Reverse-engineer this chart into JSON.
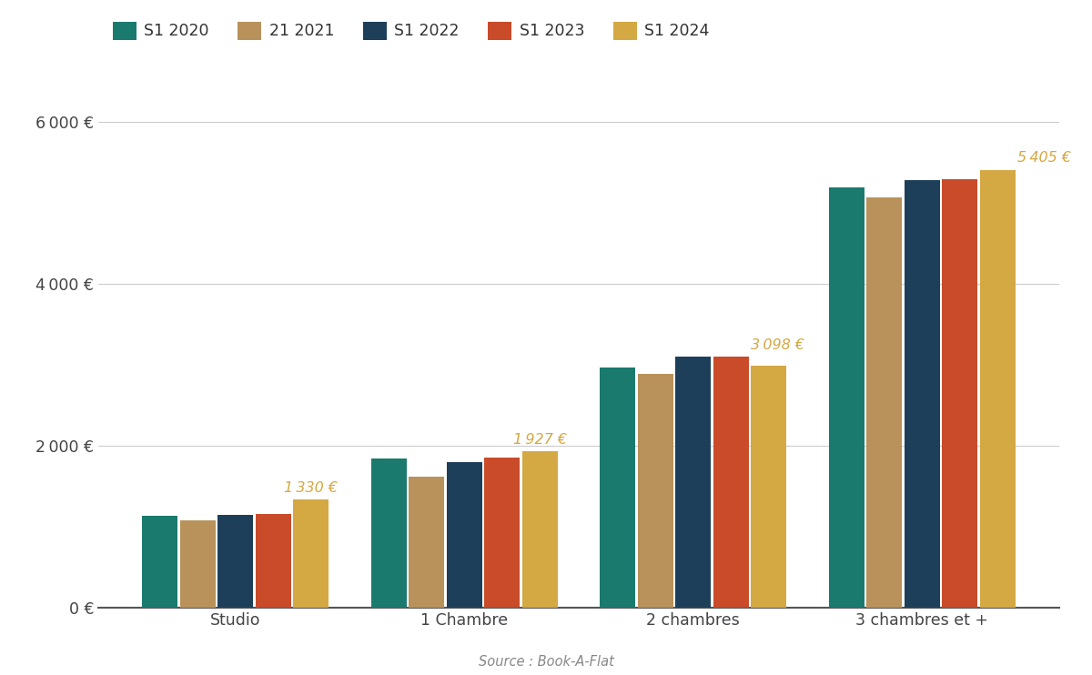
{
  "categories": [
    "Studio",
    "1 Chambre",
    "2 chambres",
    "3 chambres et +"
  ],
  "series_labels": [
    "S1 2020",
    "21 2021",
    "S1 2022",
    "S1 2023",
    "S1 2024"
  ],
  "series_colors": [
    "#1a7a6e",
    "#b8925a",
    "#1e3f5a",
    "#c94b2a",
    "#d4a843"
  ],
  "values": [
    [
      1130,
      1080,
      1140,
      1160,
      1330
    ],
    [
      1840,
      1620,
      1790,
      1850,
      1927
    ],
    [
      2960,
      2880,
      3100,
      3098,
      2980
    ],
    [
      5190,
      5060,
      5280,
      5290,
      5405
    ]
  ],
  "annotations": [
    {
      "cat_idx": 0,
      "value": 1330,
      "text": "1 330 €",
      "series_idx": 4,
      "ha": "center"
    },
    {
      "cat_idx": 1,
      "value": 1927,
      "text": "1 927 €",
      "series_idx": 4,
      "ha": "center"
    },
    {
      "cat_idx": 2,
      "value": 3098,
      "text": "3 098 €",
      "series_idx": 3,
      "ha": "left"
    },
    {
      "cat_idx": 3,
      "value": 5405,
      "text": "5 405 €",
      "series_idx": 4,
      "ha": "left"
    }
  ],
  "annotation_color": "#d4a843",
  "yticks": [
    0,
    2000,
    4000,
    6000
  ],
  "ytick_labels": [
    "0 €",
    "2 000 €",
    "4 000 €",
    "6 000 €"
  ],
  "ylim": [
    0,
    6500
  ],
  "source_text": "Source : Book-A-Flat",
  "background_color": "#ffffff",
  "grid_color": "#cccccc",
  "tick_label_color": "#444444"
}
